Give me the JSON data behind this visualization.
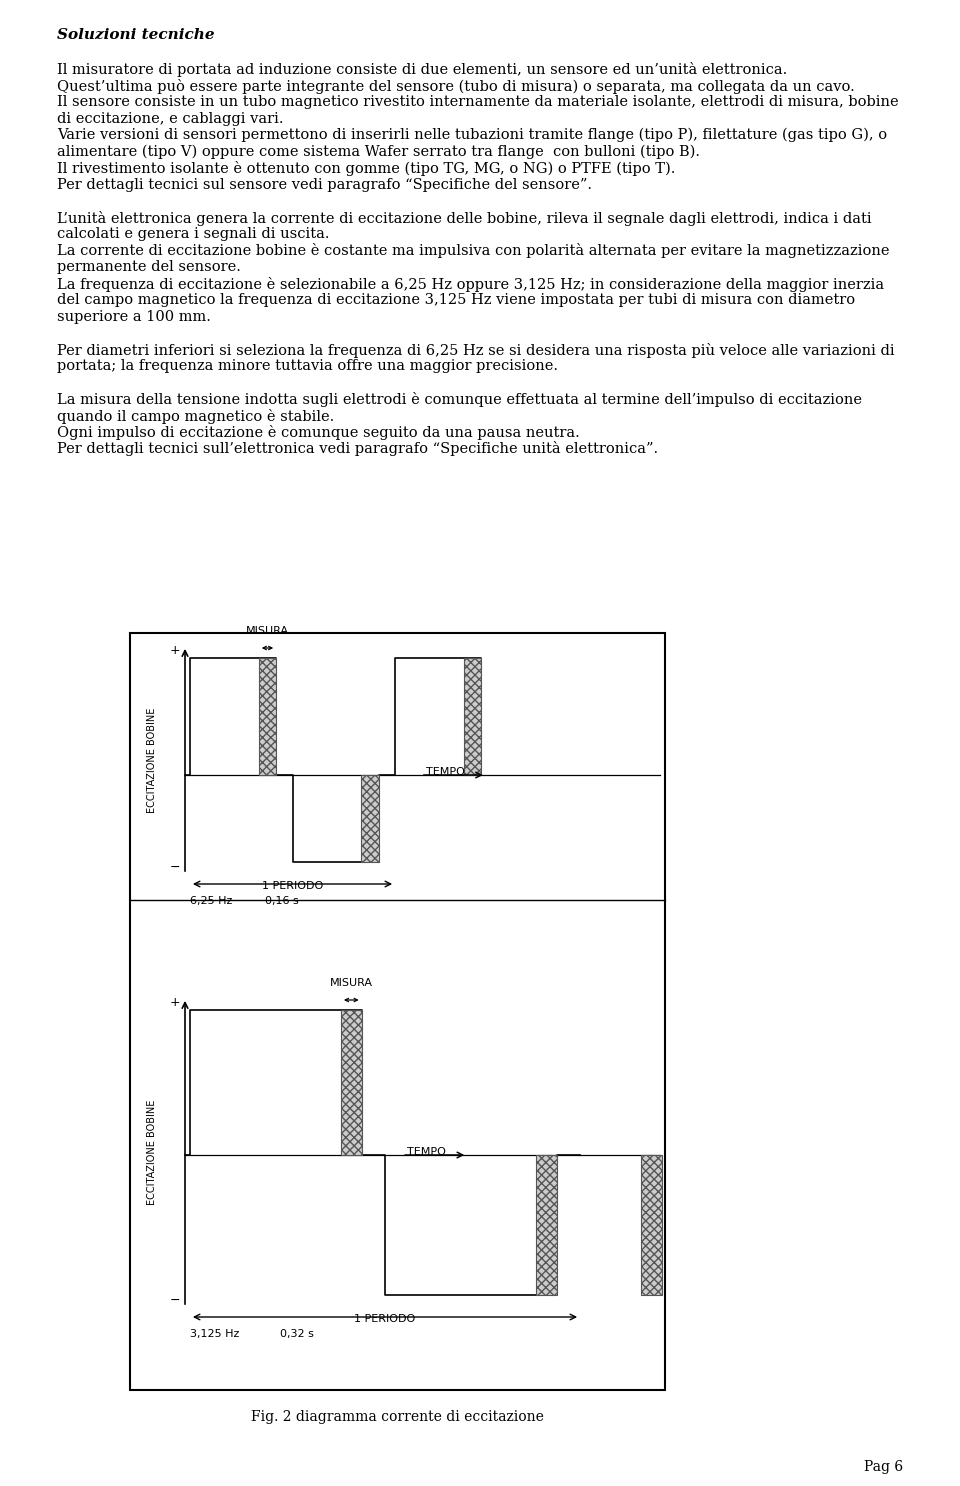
{
  "title": "Soluzioni tecniche",
  "line1": "Il misuratore di portata ad induzione consiste di due elementi, un sensore ed un’unità elettronica.",
  "line2": "Quest’ultima può essere parte integrante del sensore (tubo di misura) o separata, ma collegata da un cavo.",
  "line3a": "Il sensore consiste in un tubo magnetico rivestito internamente da materiale isolante, elettrodi di misura, bobine",
  "line3b": "di eccitazione, e cablaggi vari.",
  "line4a": "Varie versioni di sensori permettono di inserirli nelle tubazioni tramite flange (tipo P), filettature (gas tipo G), o",
  "line4b": "alimentare (tipo V) oppure come sistema Wafer serrato tra flange  con bulloni (tipo B).",
  "line5": "Il rivestimento isolante è ottenuto con gomme (tipo TG, MG, o NG) o PTFE (tipo T).",
  "line6": "Per dettagli tecnici sul sensore vedi paragrafo “Specifiche del sensore”.",
  "line7a": "L’unità elettronica genera la corrente di eccitazione delle bobine, rileva il segnale dagli elettrodi, indica i dati",
  "line7b": "calcolati e genera i segnali di uscita.",
  "line8a": "La corrente di eccitazione bobine è costante ma impulsiva con polarità alternata per evitare la magnetizzazione",
  "line8b": "permanente del sensore.",
  "line9a": "La frequenza di eccitazione è selezionabile a 6,25 Hz oppure 3,125 Hz; in considerazione della maggior inerzia",
  "line9b": "del campo magnetico la frequenza di eccitazione 3,125 Hz viene impostata per tubi di misura con diametro",
  "line9c": "superiore a 100 mm.",
  "line10a": "Per diametri inferiori si seleziona la frequenza di 6,25 Hz se si desidera una risposta più veloce alle variazioni di",
  "line10b": "portata; la frequenza minore tuttavia offre una maggior precisione.",
  "line11a": "La misura della tensione indotta sugli elettrodi è comunque effettuata al termine dell’impulso di eccitazione",
  "line11b": "quando il campo magnetico è stabile.",
  "line12": "Ogni impulso di eccitazione è comunque seguito da una pausa neutra.",
  "line13": "Per dettagli tecnici sull’elettronica vedi paragrafo “Specifiche unità elettronica”.",
  "fig_caption": "Fig. 2 diagramma corrente di eccitazione",
  "page_number": "Pag 6",
  "bg": "#ffffff"
}
